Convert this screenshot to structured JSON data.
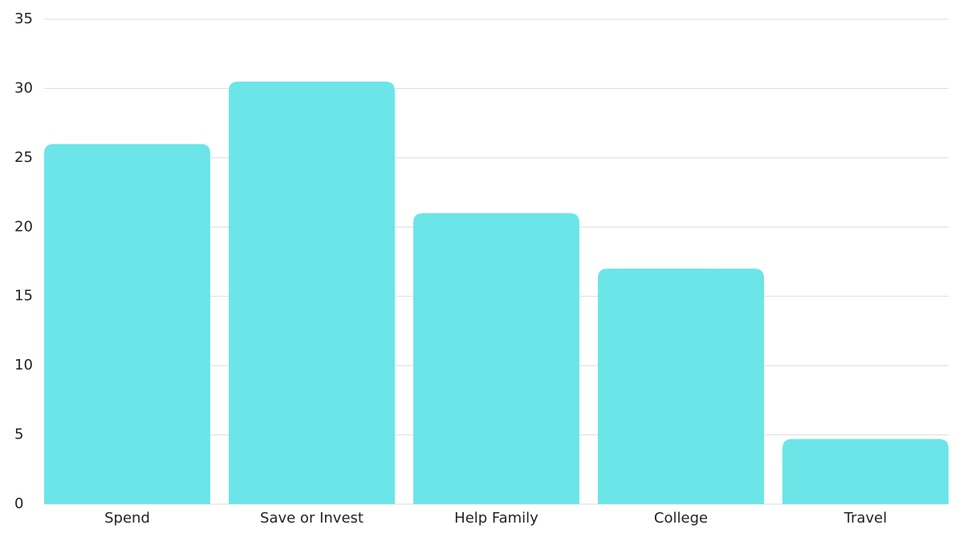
{
  "chart_data": {
    "type": "bar",
    "categories": [
      "Spend",
      "Save or Invest",
      "Help Family",
      "College",
      "Travel"
    ],
    "values": [
      26,
      30.5,
      21,
      17,
      4.7
    ],
    "color": "#6ce5e8",
    "ylim": [
      0,
      35
    ],
    "yticks": [
      0,
      5,
      10,
      15,
      20,
      25,
      30,
      35
    ],
    "grid": true
  }
}
